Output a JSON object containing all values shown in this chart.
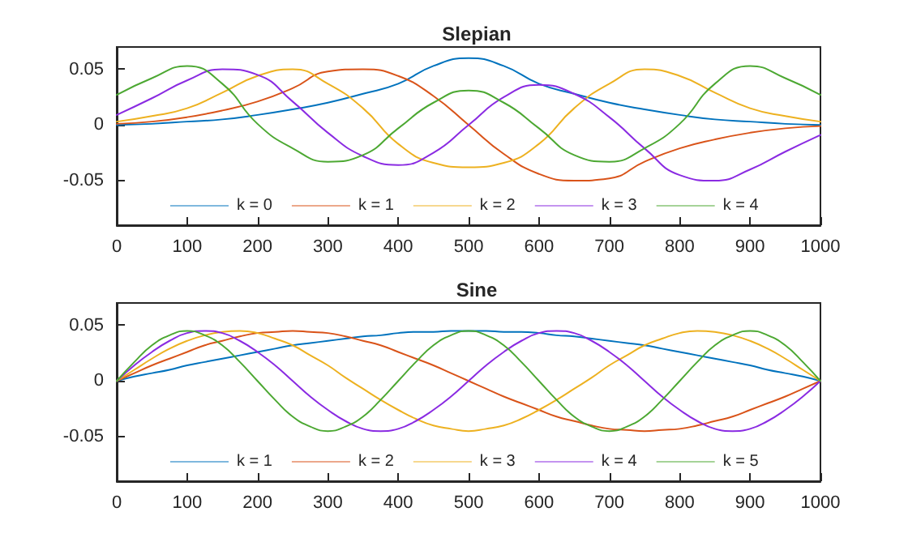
{
  "chart_data": [
    {
      "type": "line",
      "title": "Slepian",
      "x": [
        0,
        50,
        100,
        150,
        200,
        250,
        300,
        350,
        400,
        450,
        500,
        550,
        600,
        650,
        700,
        750,
        800,
        850,
        900,
        950,
        1000
      ],
      "series": [
        {
          "name": "k = 0",
          "color": "#0072bd",
          "values": [
            0.0,
            0.001,
            0.003,
            0.005,
            0.009,
            0.014,
            0.02,
            0.028,
            0.037,
            0.053,
            0.06,
            0.053,
            0.037,
            0.028,
            0.02,
            0.014,
            0.009,
            0.005,
            0.003,
            0.001,
            0.0
          ]
        },
        {
          "name": "k = 1",
          "color": "#d95319",
          "values": [
            0.001,
            0.003,
            0.007,
            0.013,
            0.021,
            0.033,
            0.048,
            0.05,
            0.044,
            0.026,
            0.0,
            -0.026,
            -0.044,
            -0.05,
            -0.048,
            -0.033,
            -0.021,
            -0.013,
            -0.007,
            -0.003,
            -0.001
          ]
        },
        {
          "name": "k = 2",
          "color": "#edb120",
          "values": [
            0.003,
            0.008,
            0.015,
            0.029,
            0.044,
            0.05,
            0.037,
            0.015,
            -0.017,
            -0.034,
            -0.038,
            -0.034,
            -0.017,
            0.015,
            0.037,
            0.05,
            0.044,
            0.029,
            0.015,
            0.008,
            0.003
          ]
        },
        {
          "name": "k = 3",
          "color": "#8a2be2",
          "values": [
            0.009,
            0.024,
            0.04,
            0.05,
            0.045,
            0.021,
            -0.007,
            -0.028,
            -0.036,
            -0.025,
            0.0,
            0.025,
            0.036,
            0.028,
            0.007,
            -0.021,
            -0.045,
            -0.05,
            -0.04,
            -0.024,
            -0.009
          ]
        },
        {
          "name": "k = 4",
          "color": "#4ca832",
          "values": [
            0.027,
            0.042,
            0.053,
            0.037,
            0.001,
            -0.021,
            -0.033,
            -0.027,
            -0.003,
            0.02,
            0.031,
            0.02,
            -0.003,
            -0.027,
            -0.033,
            -0.021,
            0.001,
            0.037,
            0.053,
            0.042,
            0.027
          ]
        }
      ],
      "xlim": [
        0,
        1000
      ],
      "xticks": [
        0,
        100,
        200,
        300,
        400,
        500,
        600,
        700,
        800,
        900,
        1000
      ],
      "ylim": [
        -0.09,
        0.07
      ],
      "yticks": [
        -0.05,
        0,
        0.05
      ],
      "legend": "bottom",
      "grid": false,
      "marker": "none",
      "line_style": "solid"
    },
    {
      "type": "line",
      "title": "Sine",
      "x": [
        0,
        25,
        50,
        75,
        100,
        125,
        150,
        175,
        200,
        225,
        250,
        275,
        300,
        325,
        350,
        375,
        400,
        425,
        450,
        475,
        500,
        525,
        550,
        575,
        600,
        625,
        650,
        675,
        700,
        725,
        750,
        775,
        800,
        825,
        850,
        875,
        900,
        925,
        950,
        975,
        1000
      ],
      "series": [
        {
          "name": "k = 1",
          "color": "#0072bd",
          "values": [
            0.0,
            0.004,
            0.007,
            0.01,
            0.014,
            0.017,
            0.02,
            0.023,
            0.026,
            0.029,
            0.032,
            0.034,
            0.036,
            0.038,
            0.04,
            0.041,
            0.043,
            0.044,
            0.044,
            0.045,
            0.045,
            0.045,
            0.044,
            0.044,
            0.043,
            0.041,
            0.04,
            0.038,
            0.036,
            0.034,
            0.032,
            0.029,
            0.026,
            0.023,
            0.02,
            0.017,
            0.014,
            0.01,
            0.007,
            0.004,
            0.0
          ]
        },
        {
          "name": "k = 2",
          "color": "#d95319",
          "values": [
            0.0,
            0.007,
            0.014,
            0.02,
            0.026,
            0.032,
            0.036,
            0.04,
            0.043,
            0.044,
            0.045,
            0.044,
            0.043,
            0.04,
            0.036,
            0.032,
            0.026,
            0.02,
            0.014,
            0.007,
            0.0,
            -0.007,
            -0.014,
            -0.02,
            -0.026,
            -0.032,
            -0.036,
            -0.04,
            -0.043,
            -0.044,
            -0.045,
            -0.044,
            -0.043,
            -0.04,
            -0.036,
            -0.032,
            -0.026,
            -0.02,
            -0.014,
            -0.007,
            0.0
          ]
        },
        {
          "name": "k = 3",
          "color": "#edb120",
          "values": [
            0.0,
            0.01,
            0.02,
            0.029,
            0.036,
            0.041,
            0.044,
            0.045,
            0.043,
            0.038,
            0.032,
            0.023,
            0.014,
            0.003,
            -0.007,
            -0.017,
            -0.026,
            -0.034,
            -0.04,
            -0.043,
            -0.045,
            -0.043,
            -0.04,
            -0.034,
            -0.026,
            -0.017,
            -0.007,
            0.003,
            0.014,
            0.023,
            0.032,
            0.038,
            0.043,
            0.045,
            0.044,
            0.041,
            0.036,
            0.029,
            0.02,
            0.01,
            0.0
          ]
        },
        {
          "name": "k = 4",
          "color": "#8a2be2",
          "values": [
            0.0,
            0.014,
            0.026,
            0.036,
            0.043,
            0.045,
            0.043,
            0.036,
            0.026,
            0.014,
            0.0,
            -0.014,
            -0.026,
            -0.036,
            -0.043,
            -0.045,
            -0.043,
            -0.036,
            -0.026,
            -0.014,
            0.0,
            0.014,
            0.026,
            0.036,
            0.043,
            0.045,
            0.043,
            0.036,
            0.026,
            0.014,
            0.0,
            -0.014,
            -0.026,
            -0.036,
            -0.043,
            -0.045,
            -0.043,
            -0.036,
            -0.026,
            -0.014,
            0.0
          ]
        },
        {
          "name": "k = 5",
          "color": "#4ca832",
          "values": [
            0.0,
            0.017,
            0.032,
            0.041,
            0.045,
            0.041,
            0.032,
            0.017,
            0.0,
            -0.017,
            -0.032,
            -0.041,
            -0.045,
            -0.041,
            -0.032,
            -0.017,
            0.0,
            0.017,
            0.032,
            0.041,
            0.045,
            0.041,
            0.032,
            0.017,
            0.0,
            -0.017,
            -0.032,
            -0.041,
            -0.045,
            -0.041,
            -0.032,
            -0.017,
            0.0,
            0.017,
            0.032,
            0.041,
            0.045,
            0.041,
            0.032,
            0.017,
            0.0
          ]
        }
      ],
      "xlim": [
        0,
        1000
      ],
      "xticks": [
        0,
        100,
        200,
        300,
        400,
        500,
        600,
        700,
        800,
        900,
        1000
      ],
      "ylim": [
        -0.09,
        0.07
      ],
      "yticks": [
        -0.05,
        0,
        0.05
      ],
      "legend": "bottom",
      "grid": false,
      "marker": "none",
      "line_style": "solid"
    }
  ]
}
